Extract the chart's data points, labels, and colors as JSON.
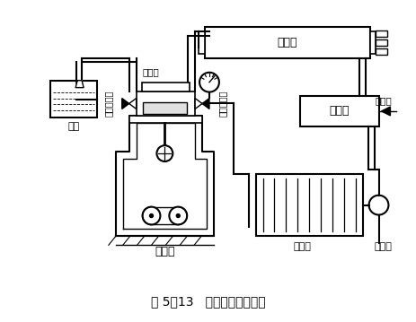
{
  "title": "图 5－13   系统抽真空操作图",
  "bg_color": "#ffffff",
  "line_color": "#000000",
  "components": {
    "condenser_label": "冷凝器",
    "receiver_label": "贮液器",
    "evaporator_label": "蒸发器",
    "expansion_valve_label": "膨胀阀",
    "compressor_label": "压缩机",
    "oil_cup_label": "油杯",
    "exhaust_pipe_label": "排气管",
    "exhaust_valve_label": "排气截止阀",
    "suction_valve_label": "吸气截止阀",
    "liquid_valve_label": "出液阀"
  },
  "figsize": [
    4.64,
    3.59
  ],
  "dpi": 100
}
